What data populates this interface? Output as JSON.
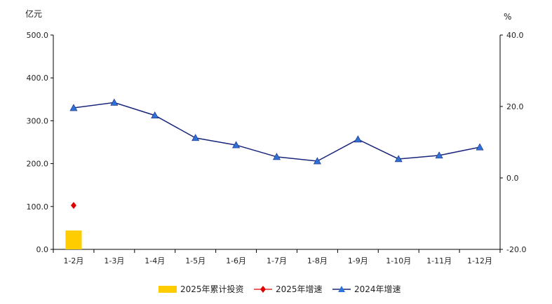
{
  "chart_data": {
    "type": "bar+line",
    "categories": [
      "1-2月",
      "1-3月",
      "1-4月",
      "1-5月",
      "1-6月",
      "1-7月",
      "1-8月",
      "1-9月",
      "1-10月",
      "1-11月",
      "1-12月"
    ],
    "left_axis": {
      "unit": "亿元",
      "range": [
        0,
        500
      ],
      "ticks": [
        "0.0",
        "100.0",
        "200.0",
        "300.0",
        "400.0",
        "500.0"
      ]
    },
    "right_axis": {
      "unit": "%",
      "range": [
        -20,
        40
      ],
      "ticks": [
        "-20.0",
        "0.0",
        "20.0",
        "40.0"
      ]
    },
    "series": [
      {
        "name": "2025年累计投资",
        "kind": "bar",
        "axis": "left",
        "color": "#FFCC00",
        "values": [
          44,
          null,
          null,
          null,
          null,
          null,
          null,
          null,
          null,
          null,
          null
        ]
      },
      {
        "name": "2025年增速",
        "kind": "marker",
        "marker": "diamond",
        "axis": "right",
        "color": "#E00000",
        "values": [
          -7.7,
          null,
          null,
          null,
          null,
          null,
          null,
          null,
          null,
          null,
          null
        ]
      },
      {
        "name": "2024年增速",
        "kind": "line",
        "marker": "triangle",
        "axis": "right",
        "color": "#17257A",
        "marker_color": "#2F72D6",
        "values": [
          19.6,
          21.1,
          17.5,
          11.2,
          9.2,
          5.9,
          4.7,
          10.8,
          5.3,
          6.3,
          8.6
        ]
      }
    ],
    "grid": false,
    "legend_position": "bottom-center"
  }
}
